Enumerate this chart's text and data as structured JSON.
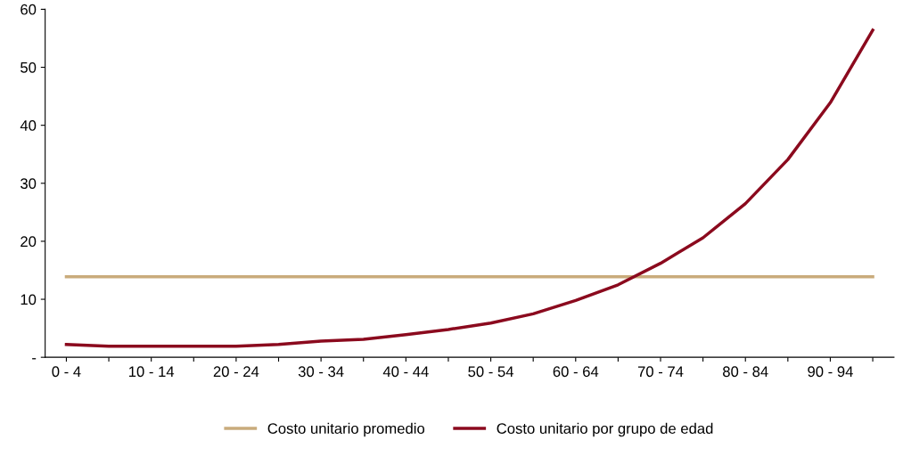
{
  "chart_data": {
    "type": "line",
    "categories": [
      "0 - 4",
      null,
      "10 - 14",
      null,
      "20 - 24",
      null,
      "30 - 34",
      null,
      "40 - 44",
      null,
      "50 - 54",
      null,
      "60 - 64",
      null,
      "70 - 74",
      null,
      "80 - 84",
      null,
      "90 - 94",
      null
    ],
    "series": [
      {
        "name": "Costo unitario promedio",
        "color": "#c9ab7c",
        "values": [
          13.9,
          13.9,
          13.9,
          13.9,
          13.9,
          13.9,
          13.9,
          13.9,
          13.9,
          13.9,
          13.9,
          13.9,
          13.9,
          13.9,
          13.9,
          13.9,
          13.9,
          13.9,
          13.9,
          13.9
        ]
      },
      {
        "name": "Costo unitario por grupo de edad",
        "color": "#8b0a1e",
        "values": [
          2.2,
          1.9,
          1.9,
          1.9,
          1.9,
          2.2,
          2.8,
          3.1,
          3.9,
          4.8,
          5.9,
          7.5,
          9.8,
          12.5,
          16.2,
          20.6,
          26.5,
          34.1,
          43.9,
          56.4
        ]
      }
    ],
    "ylim": [
      0,
      60
    ],
    "yticks": [
      {
        "value": 0,
        "label": "-"
      },
      10,
      20,
      30,
      40,
      50,
      60
    ],
    "grid": false,
    "legend": "bottom",
    "marker": "none",
    "line_style": "solid"
  }
}
